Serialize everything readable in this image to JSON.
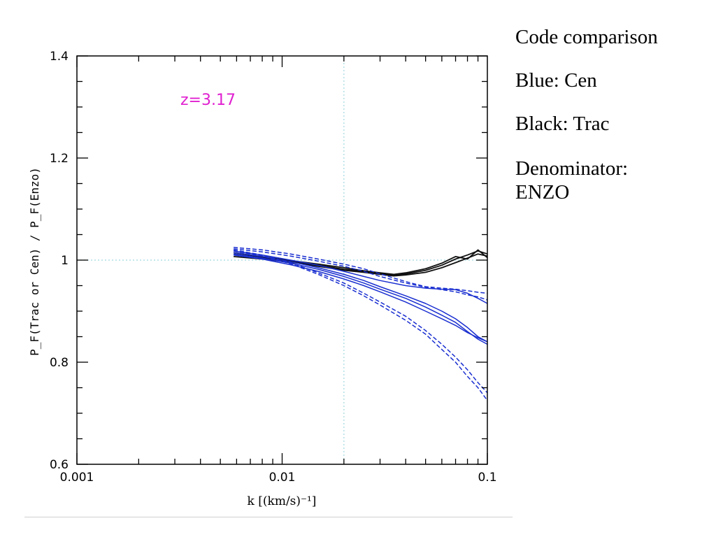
{
  "sidebar": {
    "line1": "Code comparison",
    "line2": "Blue:  Cen",
    "line3": "Black:  Trac",
    "line4a": "Denominator:",
    "line4b": "ENZO"
  },
  "chart_data": {
    "type": "line",
    "annotation": "z=3.17",
    "xlabel": "k [(km/s)⁻¹]",
    "ylabel": "P_F(Trac or Cen) / P_F(Enzo)",
    "xscale": "log",
    "xlim": [
      0.001,
      0.1
    ],
    "ylim": [
      0.6,
      1.4
    ],
    "xticks": [
      0.001,
      0.01,
      0.1
    ],
    "xtick_labels": [
      "0.001",
      "0.01",
      "0.1"
    ],
    "yticks": [
      0.6,
      0.8,
      1.0,
      1.2,
      1.4
    ],
    "ytick_labels": [
      "0.6",
      "0.8",
      "1",
      "1.2",
      "1.4"
    ],
    "reference_lines": {
      "y": 1.0,
      "x": 0.02,
      "color": "#9fd8df"
    },
    "colors": {
      "cen": "#1a2fd0",
      "trac": "#111111",
      "annotation": "#e020d0"
    },
    "grid": false,
    "series": [
      {
        "group": "trac",
        "dash": false,
        "x": [
          0.0058,
          0.008,
          0.011,
          0.015,
          0.02,
          0.025,
          0.03,
          0.035,
          0.04,
          0.05,
          0.06,
          0.07,
          0.08,
          0.09,
          0.1
        ],
        "y": [
          1.007,
          1.002,
          0.996,
          0.988,
          0.98,
          0.976,
          0.972,
          0.969,
          0.971,
          0.976,
          0.985,
          0.995,
          1.004,
          1.012,
          1.008
        ]
      },
      {
        "group": "trac",
        "dash": false,
        "x": [
          0.0058,
          0.008,
          0.011,
          0.015,
          0.02,
          0.025,
          0.03,
          0.035,
          0.04,
          0.05,
          0.06,
          0.07,
          0.08,
          0.09,
          0.1
        ],
        "y": [
          1.012,
          1.005,
          0.998,
          0.99,
          0.982,
          0.978,
          0.974,
          0.97,
          0.973,
          0.98,
          0.99,
          1.002,
          1.01,
          1.018,
          1.012
        ]
      },
      {
        "group": "trac",
        "dash": false,
        "x": [
          0.0058,
          0.008,
          0.011,
          0.015,
          0.02,
          0.025,
          0.03,
          0.035,
          0.04,
          0.05,
          0.06,
          0.07,
          0.08,
          0.09,
          0.1
        ],
        "y": [
          1.015,
          1.007,
          0.999,
          0.992,
          0.985,
          0.979,
          0.975,
          0.972,
          0.975,
          0.983,
          0.994,
          1.007,
          1.002,
          1.02,
          1.005
        ]
      },
      {
        "group": "cen",
        "dash": true,
        "x": [
          0.0058,
          0.008,
          0.011,
          0.015,
          0.02,
          0.025,
          0.03,
          0.04,
          0.05,
          0.06,
          0.07,
          0.08,
          0.09,
          0.1
        ],
        "y": [
          1.025,
          1.02,
          1.012,
          1.002,
          0.992,
          0.983,
          0.973,
          0.958,
          0.948,
          0.945,
          0.943,
          0.94,
          0.937,
          0.935
        ]
      },
      {
        "group": "cen",
        "dash": true,
        "x": [
          0.0058,
          0.008,
          0.011,
          0.015,
          0.02,
          0.025,
          0.03,
          0.04,
          0.05,
          0.06,
          0.07,
          0.08,
          0.09,
          0.1
        ],
        "y": [
          1.022,
          1.016,
          1.008,
          0.998,
          0.988,
          0.978,
          0.968,
          0.955,
          0.947,
          0.942,
          0.938,
          0.932,
          0.928,
          0.922
        ]
      },
      {
        "group": "cen",
        "dash": false,
        "x": [
          0.0058,
          0.008,
          0.011,
          0.015,
          0.02,
          0.025,
          0.03,
          0.04,
          0.05,
          0.06,
          0.07,
          0.08,
          0.09,
          0.1
        ],
        "y": [
          1.018,
          1.01,
          1.0,
          0.99,
          0.978,
          0.968,
          0.96,
          0.95,
          0.945,
          0.943,
          0.942,
          0.935,
          0.925,
          0.915
        ]
      },
      {
        "group": "cen",
        "dash": false,
        "x": [
          0.0058,
          0.008,
          0.011,
          0.015,
          0.02,
          0.025,
          0.03,
          0.04,
          0.05,
          0.06,
          0.07,
          0.08,
          0.09,
          0.1
        ],
        "y": [
          1.015,
          1.007,
          0.997,
          0.985,
          0.972,
          0.96,
          0.948,
          0.93,
          0.915,
          0.9,
          0.885,
          0.868,
          0.85,
          0.84
        ]
      },
      {
        "group": "cen",
        "dash": false,
        "x": [
          0.0058,
          0.008,
          0.011,
          0.015,
          0.02,
          0.025,
          0.03,
          0.04,
          0.05,
          0.06,
          0.07,
          0.08,
          0.09,
          0.1
        ],
        "y": [
          1.012,
          1.004,
          0.994,
          0.982,
          0.968,
          0.955,
          0.943,
          0.925,
          0.908,
          0.892,
          0.878,
          0.86,
          0.845,
          0.835
        ]
      },
      {
        "group": "cen",
        "dash": false,
        "x": [
          0.0058,
          0.008,
          0.011,
          0.015,
          0.02,
          0.025,
          0.03,
          0.04,
          0.05,
          0.06,
          0.07,
          0.08,
          0.09,
          0.1
        ],
        "y": [
          1.01,
          1.002,
          0.991,
          0.978,
          0.963,
          0.95,
          0.938,
          0.918,
          0.9,
          0.885,
          0.872,
          0.858,
          0.848,
          0.84
        ]
      },
      {
        "group": "cen",
        "dash": true,
        "x": [
          0.0058,
          0.008,
          0.011,
          0.015,
          0.02,
          0.025,
          0.03,
          0.04,
          0.05,
          0.06,
          0.07,
          0.08,
          0.09,
          0.1
        ],
        "y": [
          1.02,
          1.01,
          0.995,
          0.975,
          0.955,
          0.935,
          0.918,
          0.89,
          0.862,
          0.835,
          0.81,
          0.785,
          0.76,
          0.74
        ]
      },
      {
        "group": "cen",
        "dash": true,
        "x": [
          0.0058,
          0.008,
          0.011,
          0.015,
          0.02,
          0.025,
          0.03,
          0.04,
          0.05,
          0.06,
          0.07,
          0.08,
          0.09,
          0.1
        ],
        "y": [
          1.018,
          1.008,
          0.993,
          0.972,
          0.95,
          0.93,
          0.912,
          0.882,
          0.855,
          0.825,
          0.8,
          0.772,
          0.75,
          0.725
        ]
      }
    ]
  }
}
